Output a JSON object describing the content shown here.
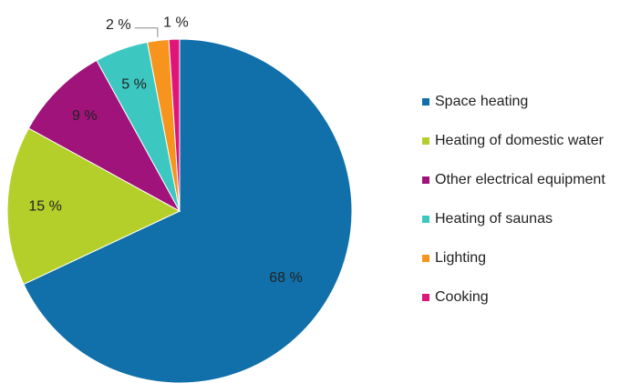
{
  "chart_data": {
    "type": "pie",
    "categories": [
      "Space heating",
      "Heating of domestic water",
      "Other electrical equipment",
      "Heating of saunas",
      "Lighting",
      "Cooking"
    ],
    "values": [
      68,
      15,
      9,
      5,
      2,
      1
    ],
    "value_labels": [
      "68 %",
      "15 %",
      "9 %",
      "5 %",
      "2 %",
      "1 %"
    ],
    "colors": [
      "#1170aa",
      "#b5cf2a",
      "#a0137a",
      "#3cc7c0",
      "#f7941d",
      "#e0157a"
    ],
    "legend": "right"
  }
}
